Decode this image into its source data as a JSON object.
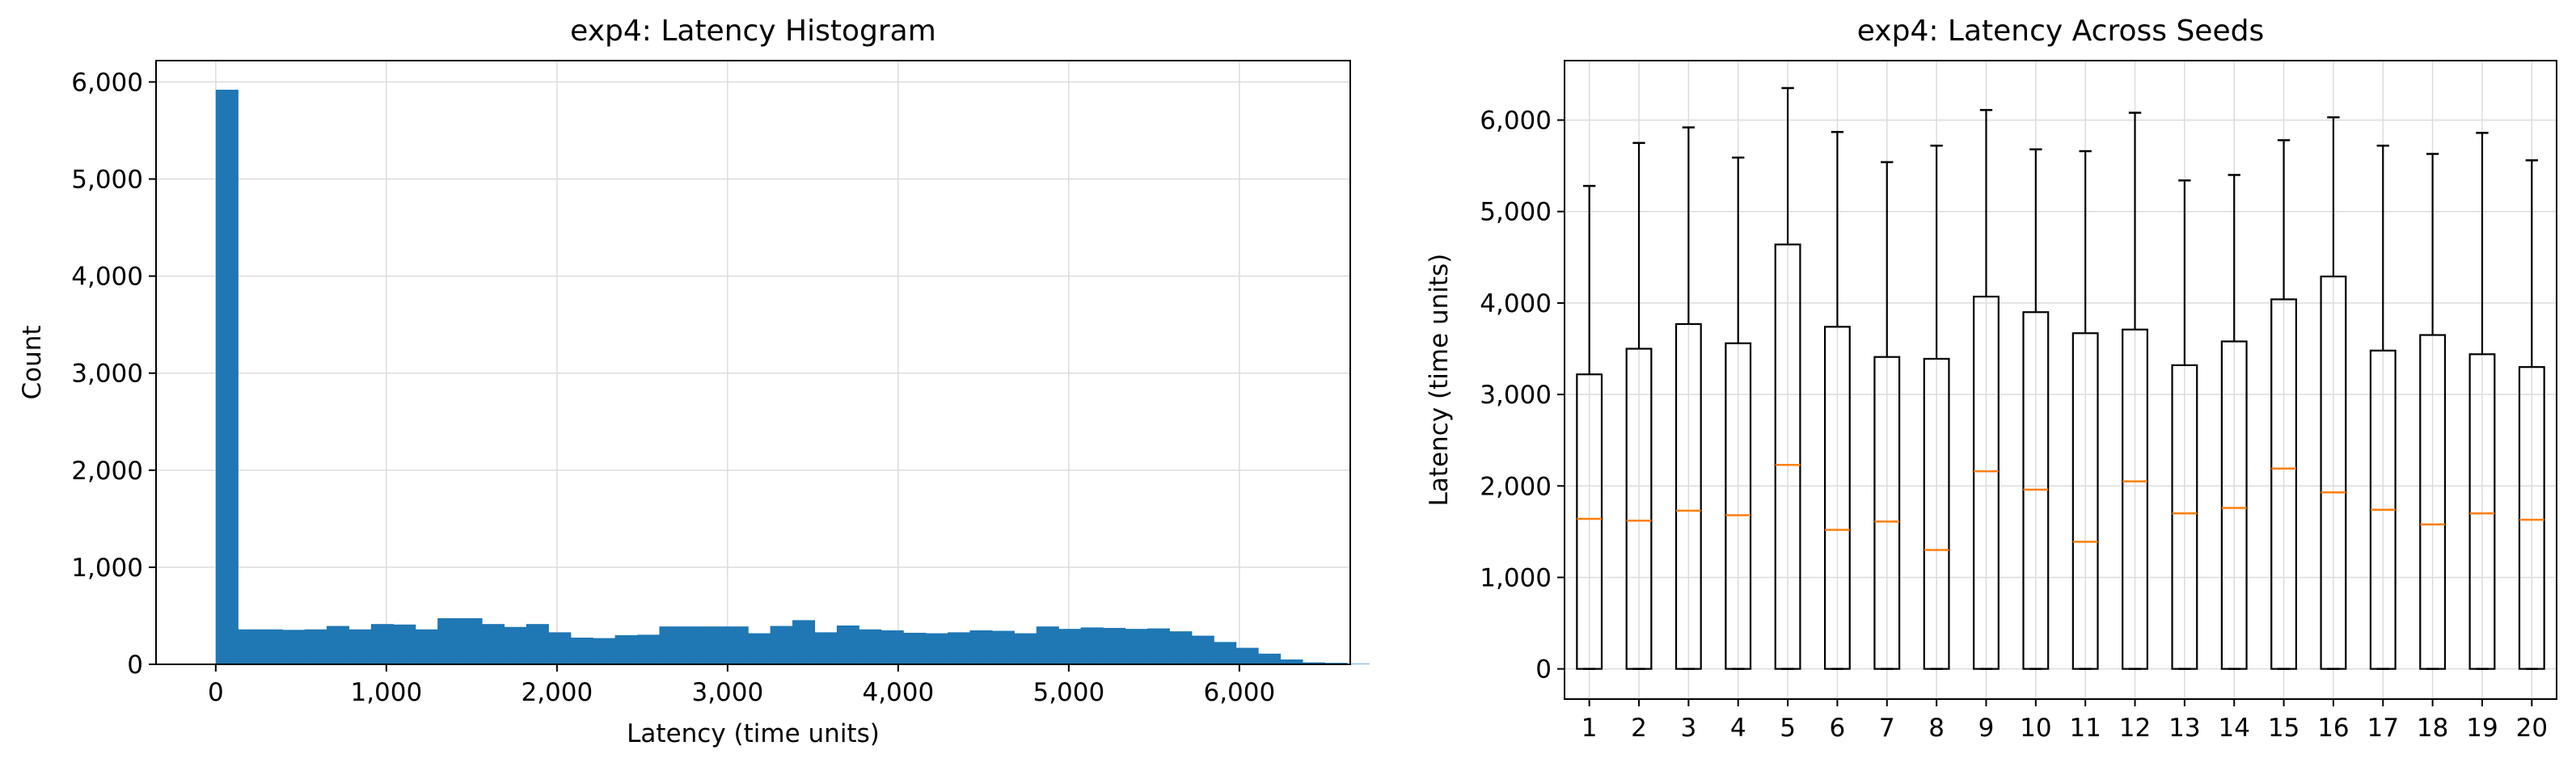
{
  "chart_data": [
    {
      "type": "bar",
      "title": "exp4: Latency Histogram",
      "xlabel": "Latency (time units)",
      "ylabel": "Count",
      "xlim": [
        -350,
        6650
      ],
      "ylim": [
        0,
        6220
      ],
      "xticks": [
        0,
        1000,
        2000,
        3000,
        4000,
        5000,
        6000
      ],
      "xtick_labels": [
        "0",
        "1,000",
        "2,000",
        "3,000",
        "4,000",
        "5,000",
        "6,000"
      ],
      "yticks": [
        0,
        1000,
        2000,
        3000,
        4000,
        5000,
        6000
      ],
      "ytick_labels": [
        "0",
        "1,000",
        "2,000",
        "3,000",
        "4,000",
        "5,000",
        "6,000"
      ],
      "grid": true,
      "bin_start": 0,
      "bin_width": 130,
      "bar_color": "#1f77b4",
      "values": [
        5920,
        360,
        360,
        355,
        360,
        395,
        360,
        415,
        410,
        360,
        475,
        475,
        415,
        385,
        415,
        330,
        275,
        270,
        300,
        305,
        390,
        390,
        390,
        390,
        320,
        395,
        455,
        330,
        400,
        360,
        350,
        325,
        320,
        330,
        350,
        345,
        320,
        390,
        365,
        380,
        375,
        365,
        370,
        340,
        295,
        230,
        170,
        110,
        50,
        20,
        15,
        5
      ]
    },
    {
      "type": "box",
      "title": "exp4: Latency Across Seeds",
      "xlabel": "",
      "ylabel": "Latency (time units)",
      "ylim": [
        -330,
        6650
      ],
      "yticks": [
        0,
        1000,
        2000,
        3000,
        4000,
        5000,
        6000
      ],
      "ytick_labels": [
        "0",
        "1,000",
        "2,000",
        "3,000",
        "4,000",
        "5,000",
        "6,000"
      ],
      "grid": true,
      "median_color": "#ff7f0e",
      "categories": [
        "1",
        "2",
        "3",
        "4",
        "5",
        "6",
        "7",
        "8",
        "9",
        "10",
        "11",
        "12",
        "13",
        "14",
        "15",
        "16",
        "17",
        "18",
        "19",
        "20"
      ],
      "boxes": [
        {
          "whislo": 0,
          "q1": 0,
          "med": 1640,
          "q3": 3220,
          "whishi": 5280
        },
        {
          "whislo": 0,
          "q1": 0,
          "med": 1620,
          "q3": 3500,
          "whishi": 5750
        },
        {
          "whislo": 0,
          "q1": 0,
          "med": 1730,
          "q3": 3770,
          "whishi": 5920
        },
        {
          "whislo": 0,
          "q1": 0,
          "med": 1680,
          "q3": 3560,
          "whishi": 5590
        },
        {
          "whislo": 0,
          "q1": 0,
          "med": 2230,
          "q3": 4640,
          "whishi": 6350
        },
        {
          "whislo": 0,
          "q1": 0,
          "med": 1520,
          "q3": 3740,
          "whishi": 5870
        },
        {
          "whislo": 0,
          "q1": 0,
          "med": 1610,
          "q3": 3410,
          "whishi": 5540
        },
        {
          "whislo": 0,
          "q1": 0,
          "med": 1300,
          "q3": 3390,
          "whishi": 5720
        },
        {
          "whislo": 0,
          "q1": 0,
          "med": 2160,
          "q3": 4070,
          "whishi": 6110
        },
        {
          "whislo": 0,
          "q1": 0,
          "med": 1960,
          "q3": 3900,
          "whishi": 5680
        },
        {
          "whislo": 0,
          "q1": 0,
          "med": 1390,
          "q3": 3670,
          "whishi": 5660
        },
        {
          "whislo": 0,
          "q1": 0,
          "med": 2050,
          "q3": 3710,
          "whishi": 6080
        },
        {
          "whislo": 0,
          "q1": 0,
          "med": 1700,
          "q3": 3320,
          "whishi": 5340
        },
        {
          "whislo": 0,
          "q1": 0,
          "med": 1760,
          "q3": 3580,
          "whishi": 5400
        },
        {
          "whislo": 0,
          "q1": 0,
          "med": 2190,
          "q3": 4040,
          "whishi": 5780
        },
        {
          "whislo": 0,
          "q1": 0,
          "med": 1930,
          "q3": 4290,
          "whishi": 6030
        },
        {
          "whislo": 0,
          "q1": 0,
          "med": 1740,
          "q3": 3480,
          "whishi": 5720
        },
        {
          "whislo": 0,
          "q1": 0,
          "med": 1580,
          "q3": 3650,
          "whishi": 5630
        },
        {
          "whislo": 0,
          "q1": 0,
          "med": 1700,
          "q3": 3440,
          "whishi": 5860
        },
        {
          "whislo": 0,
          "q1": 0,
          "med": 1630,
          "q3": 3300,
          "whishi": 5560
        }
      ]
    }
  ]
}
